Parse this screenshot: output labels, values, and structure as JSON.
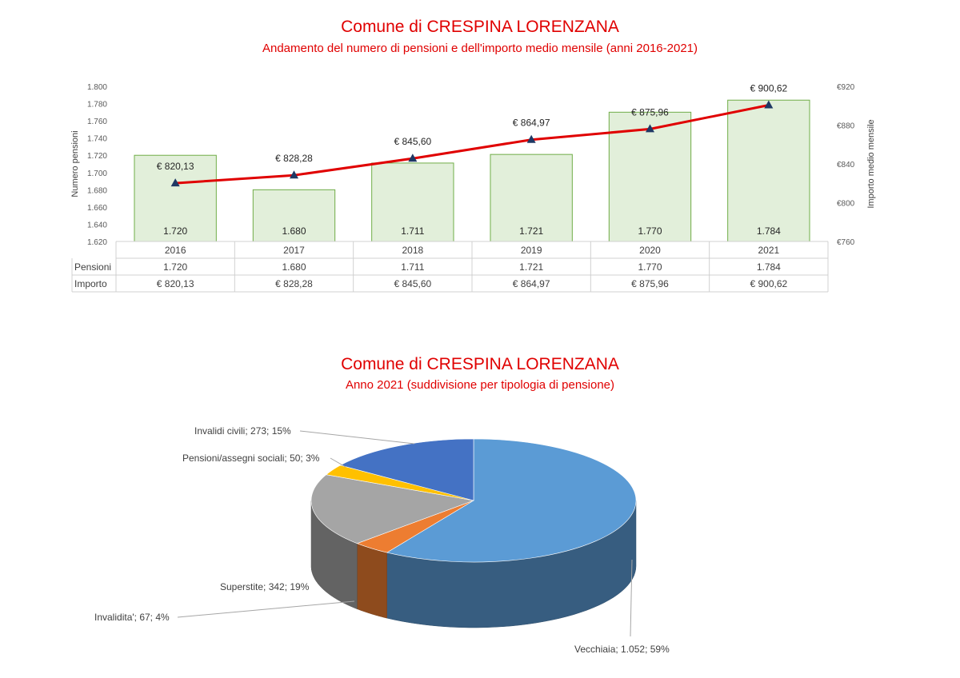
{
  "chart_data": [
    {
      "type": "bar",
      "title": "Comune di CRESPINA LORENZANA",
      "subtitle": "Andamento del numero di pensioni e dell'importo medio mensile (anni 2016-2021)",
      "categories": [
        "2016",
        "2017",
        "2018",
        "2019",
        "2020",
        "2021"
      ],
      "ylabel": "Numero pensioni",
      "y2label": "Importo medio mensile",
      "ylim": [
        1620,
        1800
      ],
      "y2lim": [
        760,
        920
      ],
      "yticks": [
        "1.620",
        "1.640",
        "1.660",
        "1.680",
        "1.700",
        "1.720",
        "1.740",
        "1.760",
        "1.780",
        "1.800"
      ],
      "y2ticks": [
        "€760",
        "€800",
        "€840",
        "€880",
        "€920"
      ],
      "series": [
        {
          "name": "Pensioni",
          "type": "bar",
          "axis": "left",
          "color": "#e2efda",
          "edge": "#70ad47",
          "values": [
            1720,
            1680,
            1711,
            1721,
            1770,
            1784
          ],
          "labels": [
            "1.720",
            "1.680",
            "1.711",
            "1.721",
            "1.770",
            "1.784"
          ]
        },
        {
          "name": "Importo",
          "type": "line",
          "axis": "right",
          "color": "#e00000",
          "marker_color": "#1f3864",
          "values": [
            820.13,
            828.28,
            845.6,
            864.97,
            875.96,
            900.62
          ],
          "labels": [
            "€ 820,13",
            "€ 828,28",
            "€ 845,60",
            "€ 864,97",
            "€ 875,96",
            "€ 900,62"
          ]
        }
      ],
      "table": {
        "rows": [
          {
            "label": "Pensioni",
            "values": [
              "1.720",
              "1.680",
              "1.711",
              "1.721",
              "1.770",
              "1.784"
            ]
          },
          {
            "label": "Importo",
            "values": [
              "€ 820,13",
              "€ 828,28",
              "€ 845,60",
              "€ 864,97",
              "€ 875,96",
              "€ 900,62"
            ]
          }
        ]
      },
      "grid": false
    },
    {
      "type": "pie",
      "title": "Comune di CRESPINA LORENZANA",
      "subtitle": "Anno 2021 (suddivisione per tipologia di pensione)",
      "slices": [
        {
          "name": "Vecchiaia",
          "value": 1052,
          "percent": 59,
          "label": "Vecchiaia; 1.052; 59%",
          "color": "#5b9bd5"
        },
        {
          "name": "Invalidita'",
          "value": 67,
          "percent": 4,
          "label": "Invalidita'; 67; 4%",
          "color": "#ed7d31"
        },
        {
          "name": "Superstite",
          "value": 342,
          "percent": 19,
          "label": "Superstite; 342; 19%",
          "color": "#a5a5a5"
        },
        {
          "name": "Pensioni/assegni sociali",
          "value": 50,
          "percent": 3,
          "label": "Pensioni/assegni sociali; 50; 3%",
          "color": "#ffc000"
        },
        {
          "name": "Invalidi civili",
          "value": 273,
          "percent": 15,
          "label": "Invalidi civili; 273; 15%",
          "color": "#4472c4"
        }
      ],
      "style": "3d"
    }
  ]
}
